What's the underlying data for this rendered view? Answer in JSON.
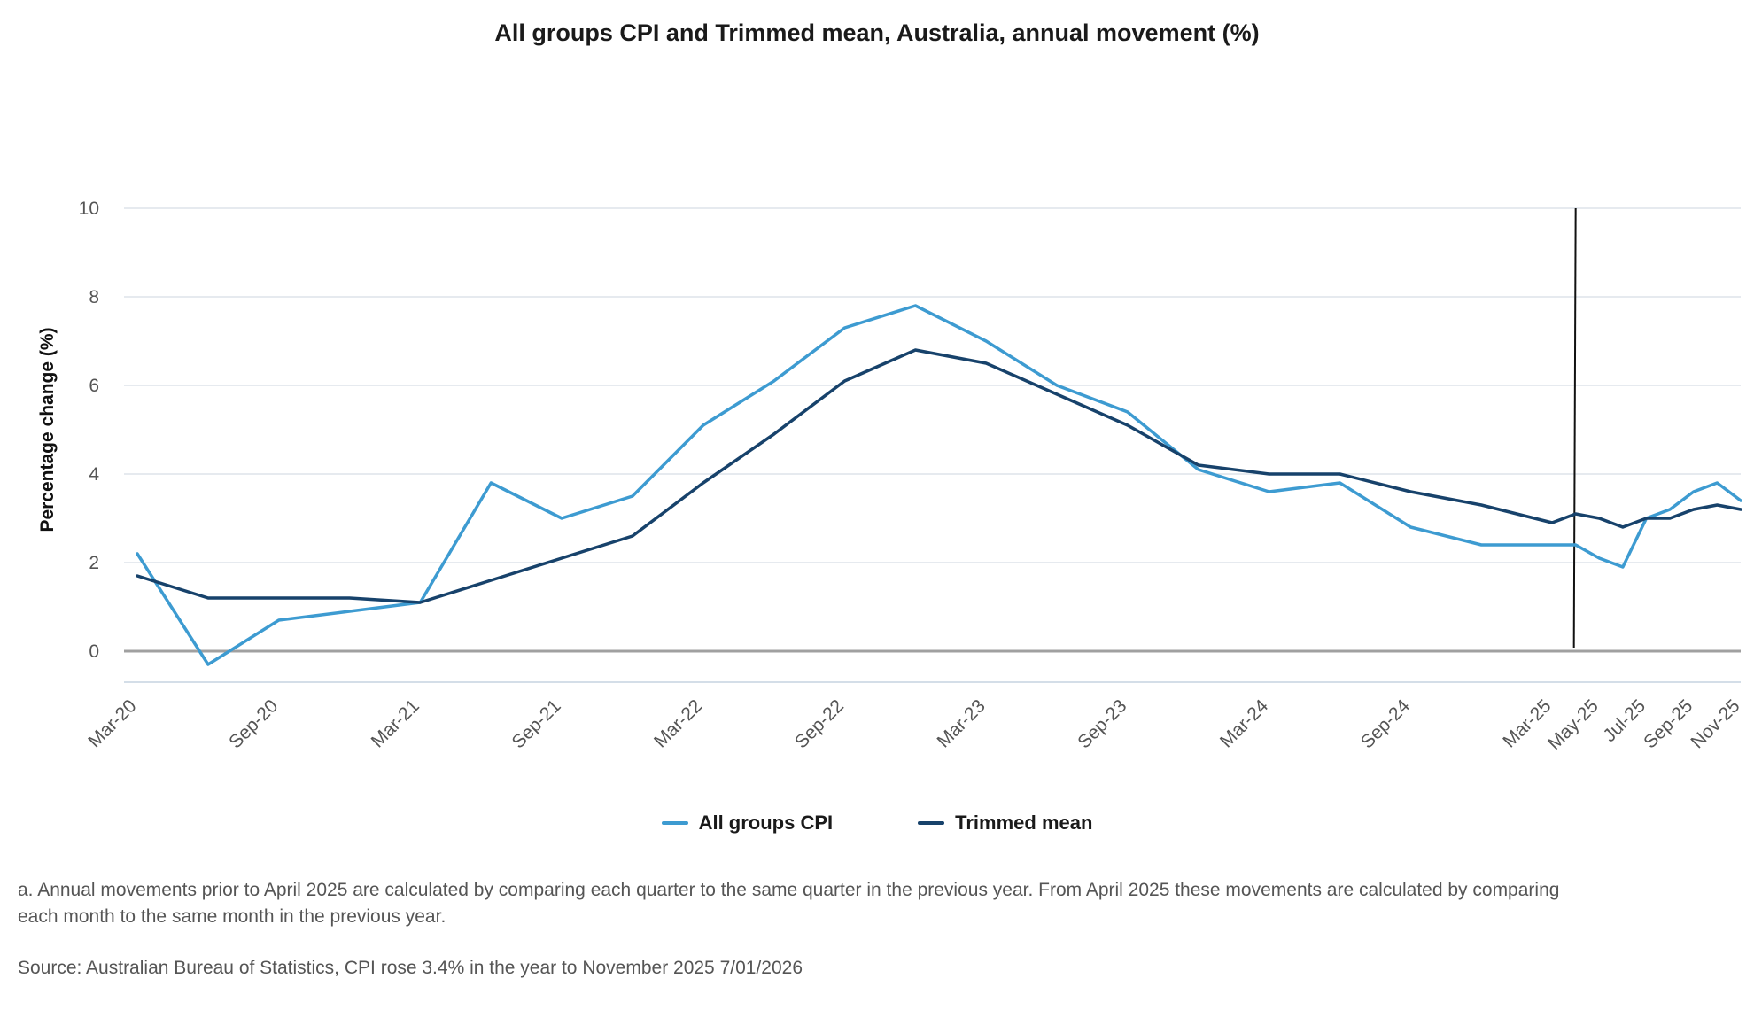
{
  "chart_data": {
    "type": "line",
    "title": "All groups CPI and Trimmed mean, Australia, annual movement (%)",
    "ylabel": "Percentage change (%)",
    "xlabel": "",
    "ylim": [
      -0.7,
      10
    ],
    "yticks": [
      0,
      2,
      4,
      6,
      8,
      10
    ],
    "grid": true,
    "legend_position": "bottom",
    "x": [
      "Mar-20",
      "Jun-20",
      "Sep-20",
      "Dec-20",
      "Mar-21",
      "Jun-21",
      "Sep-21",
      "Dec-21",
      "Mar-22",
      "Jun-22",
      "Sep-22",
      "Dec-22",
      "Mar-23",
      "Jun-23",
      "Sep-23",
      "Dec-23",
      "Mar-24",
      "Jun-24",
      "Sep-24",
      "Dec-24",
      "Mar-25",
      "Apr-25",
      "May-25",
      "Jun-25",
      "Jul-25",
      "Aug-25",
      "Sep-25",
      "Oct-25",
      "Nov-25"
    ],
    "x_tick_labels": [
      "Mar-20",
      "Sep-20",
      "Mar-21",
      "Sep-21",
      "Mar-22",
      "Sep-22",
      "Mar-23",
      "Sep-23",
      "Mar-24",
      "Sep-24",
      "Mar-25",
      "May-25",
      "Jul-25",
      "Sep-25",
      "Nov-25"
    ],
    "series": [
      {
        "name": "All groups CPI",
        "color": "#3d9bd1",
        "values": [
          2.2,
          -0.3,
          0.7,
          0.9,
          1.1,
          3.8,
          3.0,
          3.5,
          5.1,
          6.1,
          7.3,
          7.8,
          7.0,
          6.0,
          5.4,
          4.1,
          3.6,
          3.8,
          2.8,
          2.4,
          2.4,
          2.4,
          2.1,
          1.9,
          3.0,
          3.2,
          3.6,
          3.8,
          3.4
        ]
      },
      {
        "name": "Trimmed mean",
        "color": "#17426b",
        "values": [
          1.7,
          1.2,
          1.2,
          1.2,
          1.1,
          1.6,
          2.1,
          2.6,
          3.8,
          4.9,
          6.1,
          6.8,
          6.5,
          5.8,
          5.1,
          4.2,
          4.0,
          4.0,
          3.6,
          3.3,
          2.9,
          3.1,
          3.0,
          2.8,
          3.0,
          3.0,
          3.2,
          3.3,
          3.2
        ]
      }
    ],
    "vertical_marker": "Apr-25",
    "colors": {
      "grid": "#dde4ea",
      "zero_line": "#a0a0a0",
      "bottom_axis": "#c5d3e0",
      "marker": "#111111"
    }
  },
  "note": "a. Annual movements prior to April 2025 are calculated by comparing each quarter to the same quarter in the previous year.  From April 2025 these movements are calculated by comparing each month to the same month in the previous year.",
  "source": "Source: Australian Bureau of Statistics, CPI rose 3.4% in the year to November 2025 7/01/2026"
}
